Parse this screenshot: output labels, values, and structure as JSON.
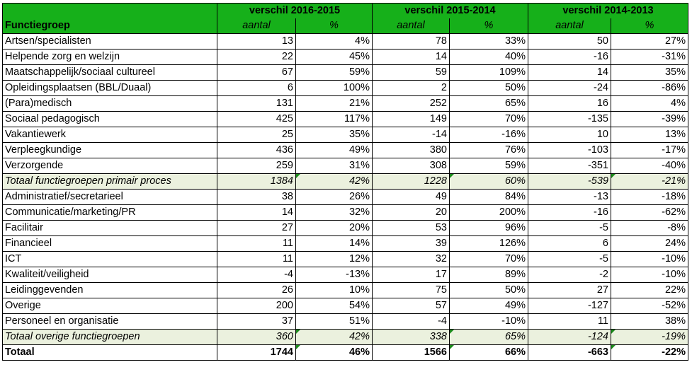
{
  "header": {
    "group_label": "Functiegroep",
    "periods": [
      "verschil 2016-2015",
      "verschil 2015-2014",
      "verschil 2014-2013"
    ],
    "sub_aantal": "aantal",
    "sub_pct": "%"
  },
  "rows": [
    {
      "name": "Artsen/specialisten",
      "v": [
        "13",
        "4%",
        "78",
        "33%",
        "50",
        "27%"
      ]
    },
    {
      "name": "Helpende zorg en welzijn",
      "v": [
        "22",
        "45%",
        "14",
        "40%",
        "-16",
        "-31%"
      ]
    },
    {
      "name": "Maatschappelijk/sociaal cultureel",
      "v": [
        "67",
        "59%",
        "59",
        "109%",
        "14",
        "35%"
      ]
    },
    {
      "name": "Opleidingsplaatsen (BBL/Duaal)",
      "v": [
        "6",
        "100%",
        "2",
        "50%",
        "-24",
        "-86%"
      ]
    },
    {
      "name": "(Para)medisch",
      "v": [
        "131",
        "21%",
        "252",
        "65%",
        "16",
        "4%"
      ]
    },
    {
      "name": "Sociaal pedagogisch",
      "v": [
        "425",
        "117%",
        "149",
        "70%",
        "-135",
        "-39%"
      ]
    },
    {
      "name": "Vakantiewerk",
      "v": [
        "25",
        "35%",
        "-14",
        "-16%",
        "10",
        "13%"
      ]
    },
    {
      "name": "Verpleegkundige",
      "v": [
        "436",
        "49%",
        "380",
        "76%",
        "-103",
        "-17%"
      ]
    },
    {
      "name": "Verzorgende",
      "v": [
        "259",
        "31%",
        "308",
        "59%",
        "-351",
        "-40%"
      ]
    },
    {
      "name": "Totaal functiegroepen primair proces",
      "v": [
        "1384",
        "42%",
        "1228",
        "60%",
        "-539",
        "-21%"
      ],
      "type": "subtotal"
    },
    {
      "name": "Administratief/secretarieel",
      "v": [
        "38",
        "26%",
        "49",
        "84%",
        "-13",
        "-18%"
      ]
    },
    {
      "name": "Communicatie/marketing/PR",
      "v": [
        "14",
        "32%",
        "20",
        "200%",
        "-16",
        "-62%"
      ]
    },
    {
      "name": "Facilitair",
      "v": [
        "27",
        "20%",
        "53",
        "96%",
        "-5",
        "-8%"
      ]
    },
    {
      "name": "Financieel",
      "v": [
        "11",
        "14%",
        "39",
        "126%",
        "6",
        "24%"
      ]
    },
    {
      "name": "ICT",
      "v": [
        "11",
        "12%",
        "32",
        "70%",
        "-5",
        "-10%"
      ]
    },
    {
      "name": "Kwaliteit/veiligheid",
      "v": [
        "-4",
        "-13%",
        "17",
        "89%",
        "-2",
        "-10%"
      ]
    },
    {
      "name": "Leidinggevenden",
      "v": [
        "26",
        "10%",
        "75",
        "50%",
        "27",
        "22%"
      ]
    },
    {
      "name": "Overige",
      "v": [
        "200",
        "54%",
        "57",
        "49%",
        "-127",
        "-52%"
      ]
    },
    {
      "name": "Personeel en organisatie",
      "v": [
        "37",
        "51%",
        "-4",
        "-10%",
        "11",
        "38%"
      ]
    },
    {
      "name": "Totaal overige functiegroepen",
      "v": [
        "360",
        "42%",
        "338",
        "65%",
        "-124",
        "-19%"
      ],
      "type": "subtotal"
    },
    {
      "name": "Totaal",
      "v": [
        "1744",
        "46%",
        "1566",
        "66%",
        "-663",
        "-22%"
      ],
      "type": "total"
    }
  ]
}
